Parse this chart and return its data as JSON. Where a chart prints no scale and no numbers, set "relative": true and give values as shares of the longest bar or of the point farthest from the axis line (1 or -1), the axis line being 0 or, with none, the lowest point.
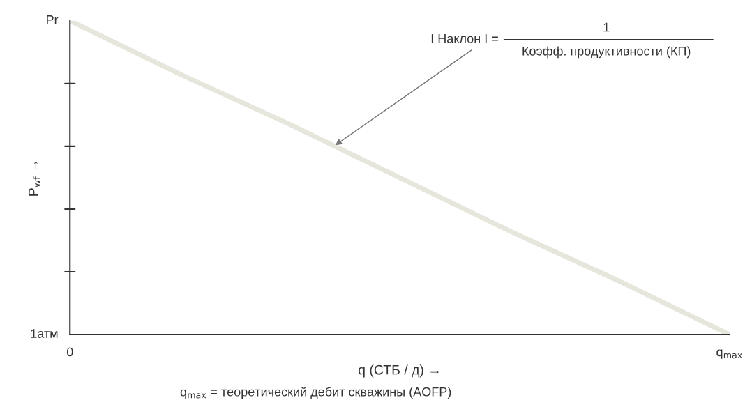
{
  "chart_data": {
    "type": "line",
    "relative": true,
    "categories": [
      "0",
      null,
      null,
      null,
      null,
      null,
      "q$_{max}$"
    ],
    "series": [
      {
        "color": "#e6e6dc",
        "values": [
          1,
          0.83,
          0.67,
          0.5,
          0.33,
          0.17,
          0
        ]
      }
    ],
    "xlabel": "q (СТБ / д) →",
    "ylabel": "P$_{wf}$ →",
    "annotations": [
      {
        "text": "Pr",
        "x": "0",
        "y": 1
      },
      "1атм",
      "I Наклон I =",
      "1",
      "Коэфф. продуктивности (КП)",
      "q$_{max}$ = теоретический дебит скважины (AOFP)"
    ],
    "grid": false,
    "legend": false,
    "marker": "none",
    "line_style": "solid"
  }
}
